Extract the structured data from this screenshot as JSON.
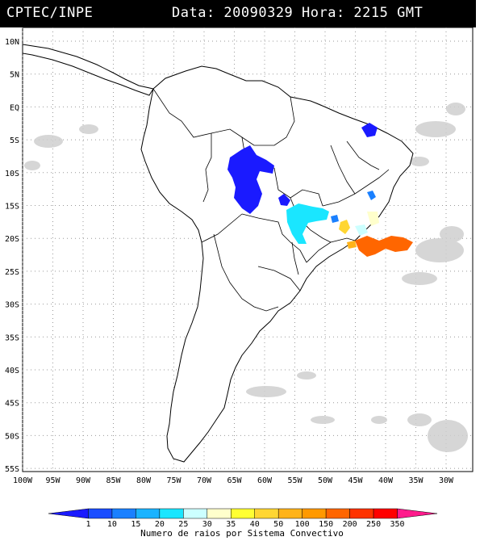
{
  "header": {
    "source": "CPTEC/INPE",
    "datetime": "Data: 20090329 Hora: 2215 GMT"
  },
  "map": {
    "lat_ticks": [
      "10N",
      "5N",
      "EQ",
      "5S",
      "10S",
      "15S",
      "20S",
      "25S",
      "30S",
      "35S",
      "40S",
      "45S",
      "50S",
      "55S"
    ],
    "lon_ticks": [
      "100W",
      "95W",
      "90W",
      "85W",
      "80W",
      "75W",
      "70W",
      "65W",
      "60W",
      "55W",
      "50W",
      "45W",
      "40W",
      "35W",
      "30W"
    ]
  },
  "colorbar": {
    "values": [
      "1",
      "10",
      "15",
      "20",
      "25",
      "30",
      "35",
      "40",
      "50",
      "100",
      "150",
      "200",
      "250",
      "350"
    ],
    "colors": [
      "#1a1aff",
      "#1a4dff",
      "#1a80ff",
      "#1ab3ff",
      "#1ae6ff",
      "#ccffff",
      "#ffffcc",
      "#ffff33",
      "#ffd633",
      "#ffb31a",
      "#ff9900",
      "#ff6600",
      "#ff3300",
      "#ff0000",
      "#ff1a8c"
    ],
    "title": "Numero de raios por Sistema Convectivo"
  },
  "legend_colors": {
    "cloud": "#c8c8c8",
    "land_outline": "#000000"
  }
}
